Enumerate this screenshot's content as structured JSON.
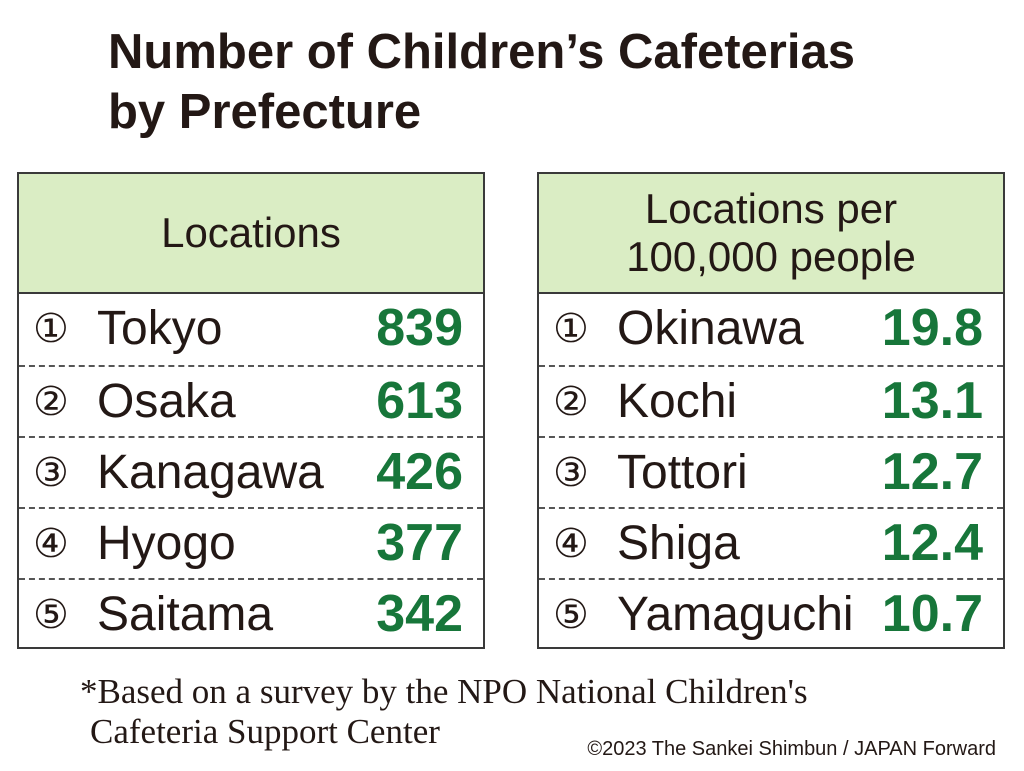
{
  "title_lines": [
    "Number of Children’s Cafeterias",
    "by Prefecture"
  ],
  "tables": [
    {
      "header_lines": [
        "Locations"
      ],
      "rows": [
        [
          "①",
          "Tokyo",
          "839"
        ],
        [
          "②",
          "Osaka",
          "613"
        ],
        [
          "③",
          "Kanagawa",
          "426"
        ],
        [
          "④",
          "Hyogo",
          "377"
        ],
        [
          "⑤",
          "Saitama",
          "342"
        ]
      ]
    },
    {
      "header_lines": [
        "Locations per",
        "100,000 people"
      ],
      "rows": [
        [
          "①",
          "Okinawa",
          "19.8"
        ],
        [
          "②",
          "Kochi",
          "13.1"
        ],
        [
          "③",
          "Tottori",
          "12.7"
        ],
        [
          "④",
          "Shiga",
          "12.4"
        ],
        [
          "⑤",
          "Yamaguchi",
          "10.7"
        ]
      ]
    }
  ],
  "footnote_lines": [
    "*Based on a survey by the NPO National Children's",
    "Cafeteria Support Center"
  ],
  "credit": "©2023 The Sankei Shimbun / JAPAN Forward"
}
